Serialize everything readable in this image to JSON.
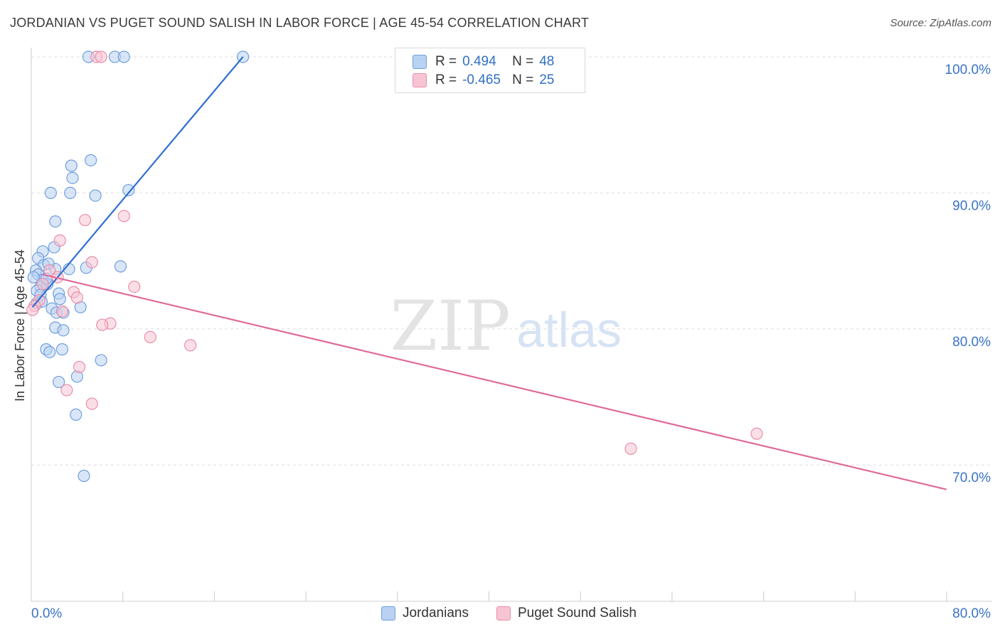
{
  "header": {
    "title": "JORDANIAN VS PUGET SOUND SALISH IN LABOR FORCE | AGE 45-54 CORRELATION CHART",
    "source": "Source: ZipAtlas.com"
  },
  "legend": {
    "r_label": "R =",
    "n_label": "N =",
    "rows": [
      {
        "r": "0.494",
        "n": "48"
      },
      {
        "r": "-0.465",
        "n": "25"
      }
    ]
  },
  "watermark": {
    "zip": "ZIP",
    "atlas": "atlas"
  },
  "colors": {
    "blue_fill": "#b9d1f2",
    "blue_stroke": "#6f9fde",
    "blue_line": "#2f6fd0",
    "pink_fill": "#f7c4d3",
    "pink_stroke": "#e88faa",
    "pink_line": "#e06a99",
    "tick_label": "#3a73c6",
    "grid": "#dddddd"
  },
  "chart_data": {
    "type": "scatter",
    "title": "JORDANIAN VS PUGET SOUND SALISH IN LABOR FORCE | AGE 45-54 CORRELATION CHART",
    "xlabel": "",
    "ylabel": "In Labor Force | Age 45-54",
    "xlim": [
      0,
      80
    ],
    "ylim": [
      60.5,
      101
    ],
    "x_tick_labels": [
      "0.0%",
      "80.0%"
    ],
    "y_ticks": [
      70,
      80,
      90,
      100
    ],
    "y_tick_labels": [
      "70.0%",
      "80.0%",
      "90.0%",
      "100.0%"
    ],
    "grid": true,
    "legend_position": "bottom",
    "series": [
      {
        "name": "Jordanians",
        "color": "#6f9fde",
        "R": 0.494,
        "N": 48,
        "trend": {
          "x": [
            0.1,
            18.5
          ],
          "y": [
            81.6,
            100.0
          ]
        },
        "points": [
          [
            5.0,
            100.0
          ],
          [
            7.3,
            100.0
          ],
          [
            8.1,
            100.0
          ],
          [
            18.5,
            100.0
          ],
          [
            5.2,
            92.4
          ],
          [
            3.5,
            92.0
          ],
          [
            3.6,
            91.1
          ],
          [
            1.7,
            90.0
          ],
          [
            3.4,
            90.0
          ],
          [
            5.6,
            89.8
          ],
          [
            8.5,
            90.2
          ],
          [
            2.1,
            87.9
          ],
          [
            2.0,
            86.0
          ],
          [
            1.0,
            85.7
          ],
          [
            0.6,
            85.2
          ],
          [
            1.1,
            84.7
          ],
          [
            2.1,
            84.4
          ],
          [
            3.3,
            84.4
          ],
          [
            4.8,
            84.5
          ],
          [
            7.8,
            84.6
          ],
          [
            1.5,
            84.8
          ],
          [
            0.4,
            84.3
          ],
          [
            0.6,
            84.0
          ],
          [
            1.0,
            83.6
          ],
          [
            1.4,
            83.3
          ],
          [
            0.8,
            83.1
          ],
          [
            0.5,
            82.8
          ],
          [
            2.4,
            82.6
          ],
          [
            0.8,
            82.5
          ],
          [
            2.5,
            82.2
          ],
          [
            0.5,
            81.9
          ],
          [
            1.8,
            81.5
          ],
          [
            2.2,
            81.2
          ],
          [
            2.8,
            81.2
          ],
          [
            4.3,
            81.6
          ],
          [
            2.1,
            80.1
          ],
          [
            2.8,
            79.9
          ],
          [
            1.3,
            78.5
          ],
          [
            1.6,
            78.3
          ],
          [
            2.7,
            78.5
          ],
          [
            6.1,
            77.7
          ],
          [
            4.0,
            76.5
          ],
          [
            2.4,
            76.1
          ],
          [
            3.9,
            73.7
          ],
          [
            4.6,
            69.2
          ],
          [
            0.2,
            83.8
          ],
          [
            0.9,
            82.0
          ],
          [
            1.3,
            83.7
          ]
        ]
      },
      {
        "name": "Puget Sound Salish",
        "color": "#e88faa",
        "R": -0.465,
        "N": 25,
        "trend": {
          "x": [
            1.0,
            80.0
          ],
          "y": [
            84.0,
            68.2
          ]
        },
        "points": [
          [
            5.7,
            100.0
          ],
          [
            6.1,
            100.0
          ],
          [
            8.1,
            88.3
          ],
          [
            4.7,
            88.0
          ],
          [
            2.5,
            86.5
          ],
          [
            5.3,
            84.9
          ],
          [
            1.6,
            84.3
          ],
          [
            2.3,
            83.8
          ],
          [
            1.0,
            83.3
          ],
          [
            9.0,
            83.1
          ],
          [
            3.7,
            82.7
          ],
          [
            4.0,
            82.3
          ],
          [
            0.7,
            82.1
          ],
          [
            0.3,
            81.7
          ],
          [
            2.7,
            81.3
          ],
          [
            6.9,
            80.4
          ],
          [
            6.2,
            80.3
          ],
          [
            10.4,
            79.4
          ],
          [
            13.9,
            78.8
          ],
          [
            4.2,
            77.2
          ],
          [
            3.1,
            75.5
          ],
          [
            5.3,
            74.5
          ],
          [
            52.4,
            71.2
          ],
          [
            63.4,
            72.3
          ],
          [
            0.1,
            81.4
          ]
        ]
      }
    ]
  }
}
